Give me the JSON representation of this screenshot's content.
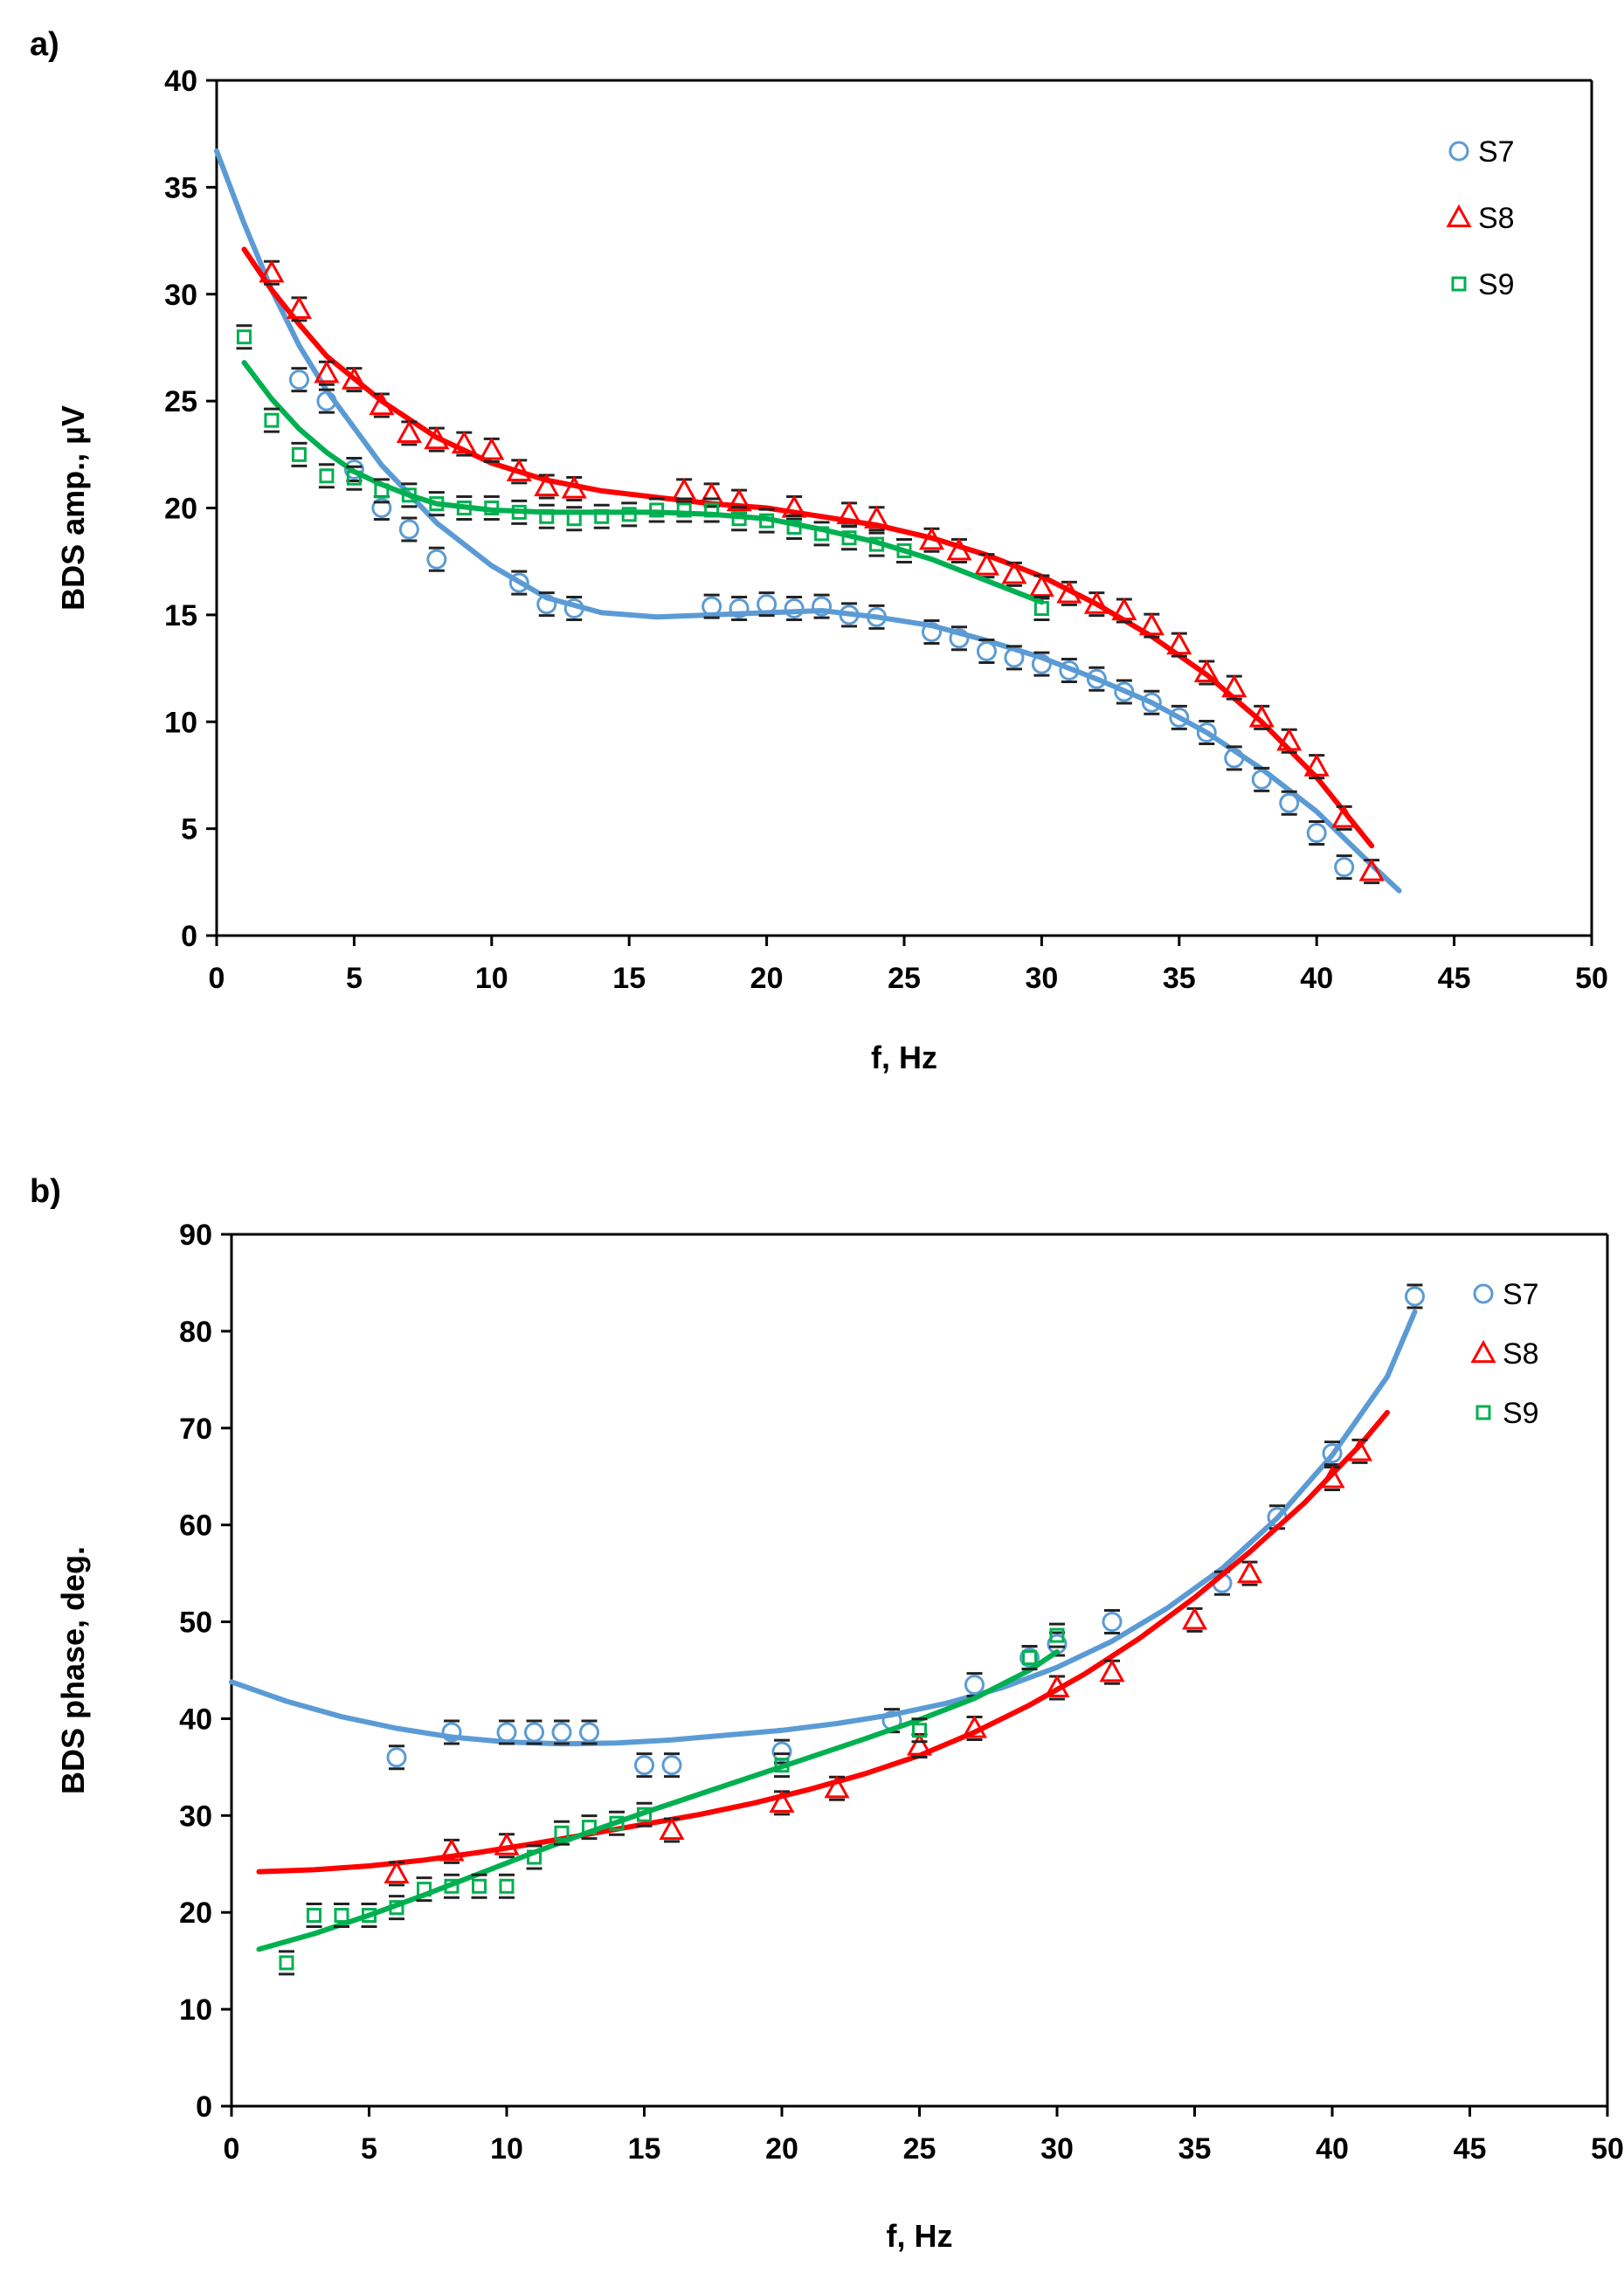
{
  "chart_data": [
    {
      "panel_label": "a)",
      "type": "scatter",
      "xlabel": "f, Hz",
      "ylabel": "BDS amp., µV",
      "xlim": [
        0,
        50
      ],
      "ylim": [
        0,
        40
      ],
      "xticks": [
        0,
        5,
        10,
        15,
        20,
        25,
        30,
        35,
        40,
        45,
        50
      ],
      "yticks": [
        0,
        5,
        10,
        15,
        20,
        25,
        30,
        35,
        40
      ],
      "legend_position": "top-right",
      "series": [
        {
          "name": "S7",
          "color": "#5b9bd5",
          "marker": "circle",
          "x": [
            3,
            4,
            5,
            6,
            7,
            8,
            11,
            12,
            13,
            18,
            19,
            20,
            21,
            22,
            23,
            24,
            26,
            27,
            28,
            29,
            30,
            31,
            32,
            33,
            34,
            35,
            36,
            37,
            38,
            39,
            40,
            41
          ],
          "y": [
            26,
            25,
            21.8,
            20,
            19,
            17.6,
            16.5,
            15.5,
            15.3,
            15.4,
            15.3,
            15.5,
            15.3,
            15.4,
            15,
            14.9,
            14.2,
            13.9,
            13.3,
            13,
            12.7,
            12.4,
            12,
            11.4,
            10.9,
            10.2,
            9.5,
            8.3,
            7.3,
            6.2,
            4.8,
            3.2
          ],
          "fit": {
            "x": [
              0,
              1,
              2,
              3,
              4,
              6,
              8,
              10,
              12,
              14,
              16,
              18,
              20,
              22,
              24,
              26,
              28,
              30,
              32,
              34,
              36,
              38,
              40,
              42,
              43
            ],
            "y": [
              36.7,
              33.3,
              30.2,
              27.6,
              25.5,
              22,
              19.3,
              17.3,
              15.8,
              15.1,
              14.9,
              15,
              15.1,
              15.2,
              14.9,
              14.5,
              13.8,
              13,
              12,
              10.9,
              9.5,
              7.8,
              5.8,
              3.3,
              2.1
            ]
          }
        },
        {
          "name": "S8",
          "color": "#ff0000",
          "marker": "triangle",
          "x": [
            2,
            3,
            4,
            5,
            6,
            7,
            8,
            9,
            10,
            11,
            12,
            13,
            17,
            18,
            19,
            21,
            23,
            24,
            26,
            27,
            28,
            29,
            30,
            31,
            32,
            33,
            34,
            35,
            36,
            37,
            38,
            39,
            40,
            41,
            42
          ],
          "y": [
            31,
            29.3,
            26.3,
            26,
            24.8,
            23.5,
            23.2,
            23,
            22.7,
            21.7,
            21,
            20.9,
            20.8,
            20.6,
            20.3,
            20,
            19.7,
            19.5,
            18.5,
            18,
            17.3,
            16.9,
            16.3,
            16,
            15.5,
            15.2,
            14.5,
            13.6,
            12.3,
            11.6,
            10.2,
            9.1,
            7.9,
            5.5,
            3
          ],
          "fit": {
            "x": [
              1,
              2,
              3,
              4,
              6,
              8,
              10,
              12,
              14,
              16,
              18,
              20,
              22,
              24,
              26,
              28,
              30,
              32,
              34,
              36,
              38,
              40,
              42
            ],
            "y": [
              32.1,
              30.2,
              28.6,
              27.1,
              25,
              23.3,
              22.1,
              21.3,
              20.8,
              20.5,
              20.2,
              20,
              19.6,
              19.2,
              18.6,
              17.8,
              16.8,
              15.5,
              14,
              12.2,
              10,
              7.4,
              4.2
            ]
          }
        },
        {
          "name": "S9",
          "color": "#00b050",
          "marker": "square",
          "x": [
            1,
            2,
            3,
            4,
            5,
            6,
            7,
            8,
            9,
            10,
            11,
            12,
            13,
            14,
            15,
            16,
            17,
            18,
            19,
            20,
            21,
            22,
            23,
            24,
            25,
            30
          ],
          "y": [
            28,
            24.1,
            22.5,
            21.5,
            21.4,
            20.8,
            20.6,
            20.2,
            20,
            20,
            19.8,
            19.6,
            19.5,
            19.6,
            19.7,
            19.9,
            19.9,
            19.9,
            19.5,
            19.4,
            19.1,
            18.8,
            18.6,
            18.3,
            18,
            15.3
          ],
          "fit": {
            "x": [
              1,
              2,
              3,
              4,
              5,
              6,
              7,
              8,
              10,
              12,
              14,
              16,
              18,
              20,
              22,
              24,
              26,
              28,
              30
            ],
            "y": [
              26.8,
              25.1,
              23.7,
              22.6,
              21.7,
              21.1,
              20.6,
              20.2,
              19.9,
              19.8,
              19.8,
              19.8,
              19.7,
              19.5,
              19,
              18.4,
              17.6,
              16.6,
              15.6
            ]
          }
        }
      ]
    },
    {
      "panel_label": "b)",
      "type": "scatter",
      "xlabel": "f, Hz",
      "ylabel": "BDS phase, deg.",
      "xlim": [
        0,
        50
      ],
      "ylim": [
        0,
        90
      ],
      "xticks": [
        0,
        5,
        10,
        15,
        20,
        25,
        30,
        35,
        40,
        45,
        50
      ],
      "yticks": [
        0,
        10,
        20,
        30,
        40,
        50,
        60,
        70,
        80,
        90
      ],
      "legend_position": "top-right",
      "series": [
        {
          "name": "S7",
          "color": "#5b9bd5",
          "marker": "circle",
          "x": [
            6,
            8,
            10,
            11,
            12,
            13,
            15,
            16,
            20,
            24,
            27,
            29,
            30,
            32,
            36,
            38,
            40,
            43
          ],
          "y": [
            36,
            38.6,
            38.6,
            38.6,
            38.6,
            38.6,
            35.2,
            35.2,
            36.6,
            39.8,
            43.5,
            46.3,
            47.7,
            50,
            54,
            60.8,
            67.4,
            83.6
          ],
          "fit": {
            "x": [
              0,
              2,
              4,
              6,
              8,
              10,
              12,
              14,
              16,
              18,
              20,
              22,
              24,
              26,
              28,
              30,
              32,
              34,
              36,
              38,
              40,
              42,
              43
            ],
            "y": [
              43.8,
              41.8,
              40.2,
              39,
              38.1,
              37.6,
              37.4,
              37.5,
              37.8,
              38.3,
              38.8,
              39.5,
              40.4,
              41.6,
              43.2,
              45.3,
              48,
              51.4,
              55.5,
              60.7,
              67.2,
              75.3,
              82
            ]
          }
        },
        {
          "name": "S8",
          "color": "#ff0000",
          "marker": "triangle",
          "x": [
            6,
            8,
            10,
            16,
            20,
            22,
            25,
            27,
            30,
            32,
            35,
            37,
            40,
            41
          ],
          "y": [
            24,
            26.3,
            26.9,
            28.5,
            31.3,
            32.8,
            37.2,
            39,
            43.2,
            44.8,
            50.2,
            55,
            64.8,
            67.6
          ],
          "fit": {
            "x": [
              1,
              3,
              5,
              7,
              9,
              11,
              13,
              15,
              17,
              19,
              21,
              23,
              25,
              27,
              29,
              31,
              33,
              35,
              37,
              39,
              41,
              42
            ],
            "y": [
              24.2,
              24.4,
              24.8,
              25.4,
              26.2,
              27.1,
              28.1,
              29.1,
              30.1,
              31.3,
              32.7,
              34.3,
              36.2,
              38.6,
              41.4,
              44.6,
              48.3,
              52.5,
              57.2,
              62.3,
              68.2,
              71.6
            ]
          }
        },
        {
          "name": "S9",
          "color": "#00b050",
          "marker": "square",
          "x": [
            2,
            3,
            4,
            5,
            6,
            7,
            8,
            9,
            10,
            11,
            12,
            13,
            14,
            15,
            20,
            25,
            29,
            30
          ],
          "y": [
            14.8,
            19.7,
            19.7,
            19.7,
            20.5,
            22.4,
            22.7,
            22.7,
            22.7,
            25.7,
            28.2,
            28.8,
            29.2,
            30.1,
            35.2,
            38.8,
            46.3,
            48.6
          ],
          "fit": {
            "x": [
              1,
              3,
              5,
              7,
              9,
              11,
              13,
              15,
              17,
              19,
              21,
              23,
              25,
              27,
              29,
              30
            ],
            "y": [
              16.2,
              17.8,
              19.7,
              21.8,
              24,
              26.2,
              28.3,
              30.3,
              32.2,
              34.1,
              36,
              37.9,
              39.9,
              42.1,
              45,
              46.9
            ]
          }
        }
      ]
    }
  ]
}
